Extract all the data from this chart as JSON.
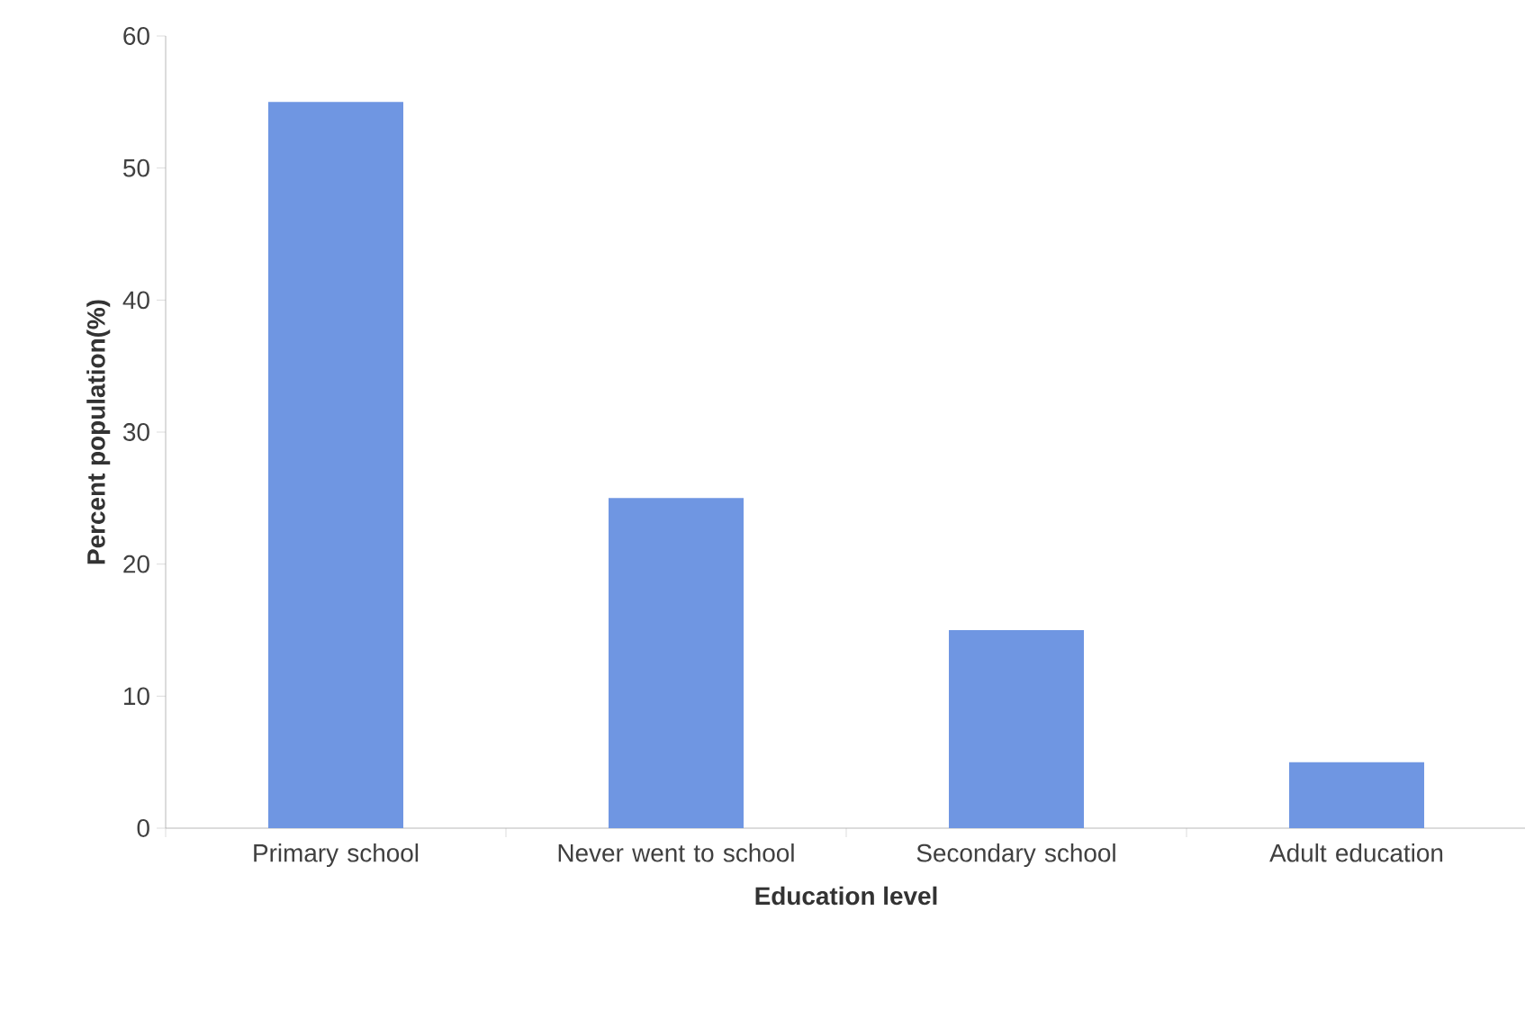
{
  "chart_data": {
    "type": "bar",
    "xlabel": "Education level",
    "ylabel": "Percent population(%)",
    "categories": [
      "Primary school",
      "Never went to school",
      "Secondary school",
      "Adult education"
    ],
    "values": [
      55,
      25,
      15,
      5
    ],
    "color": "#6f96e2",
    "ylim": [
      0,
      60
    ],
    "yticks": [
      0,
      10,
      20,
      30,
      40,
      50,
      60
    ],
    "grid": false
  }
}
